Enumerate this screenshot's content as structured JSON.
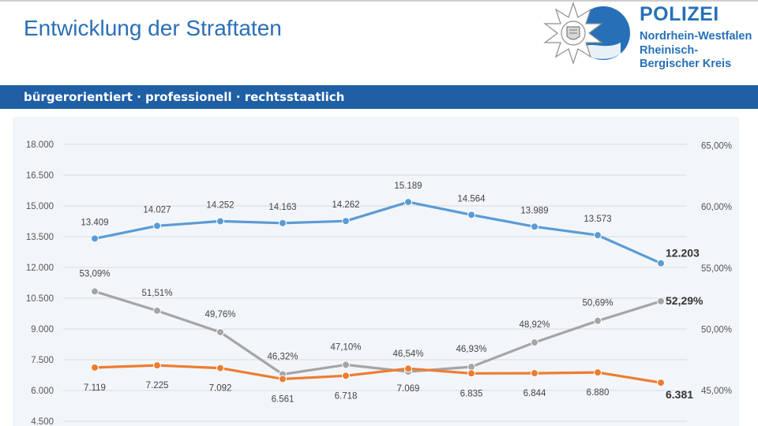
{
  "header": {
    "title": "Entwicklung der Straftaten",
    "tagline": "bürgerorientiert · professionell · rechtsstaatlich"
  },
  "logo": {
    "line1": "POLIZEI",
    "line2": "Nordrhein-Westfalen",
    "line3": "Rheinisch-",
    "line4": "Bergischer Kreis",
    "colors": {
      "brand_blue": "#2770b8",
      "star": "#9a9a9a"
    }
  },
  "colors": {
    "band": "#1f5fa5",
    "title": "#2a6fb7",
    "series_blue": "#5b9bd5",
    "series_gray": "#a5a5a5",
    "series_orange": "#ed7d31"
  },
  "chart_data": {
    "type": "line",
    "title": "",
    "xlabel": "",
    "ylabel": "",
    "ylim": [
      4500,
      18000
    ],
    "y_ticks": [
      "4.500",
      "6.000",
      "7.500",
      "9.000",
      "10.500",
      "12.000",
      "13.500",
      "15.000",
      "16.500",
      "18.000"
    ],
    "y_tick_values": [
      4500,
      6000,
      7500,
      9000,
      10500,
      12000,
      13500,
      15000,
      16500,
      18000
    ],
    "y2lim": [
      40,
      65
    ],
    "y2_ticks": [
      "45,00%",
      "50,00%",
      "55,00%",
      "60,00%",
      "65,00%"
    ],
    "y2_tick_values": [
      45,
      50,
      55,
      60,
      65
    ],
    "grid": true,
    "legend": "none",
    "x_count": 10,
    "series": [
      {
        "axis": "left",
        "color": "#5b9bd5",
        "values": [
          13409,
          14027,
          14252,
          14163,
          14262,
          15189,
          14564,
          13989,
          13573,
          12203
        ],
        "labels": [
          "13.409",
          "14.027",
          "14.252",
          "14.163",
          "14.262",
          "15.189",
          "14.564",
          "13.989",
          "13.573",
          "12.203"
        ]
      },
      {
        "axis": "right",
        "color": "#a5a5a5",
        "values": [
          53.09,
          51.51,
          49.76,
          46.32,
          47.1,
          46.54,
          46.93,
          48.92,
          50.69,
          52.29
        ],
        "labels": [
          "53,09%",
          "51,51%",
          "49,76%",
          "46,32%",
          "47,10%",
          "46,54%",
          "46,93%",
          "48,92%",
          "50,69%",
          "52,29%"
        ]
      },
      {
        "axis": "left",
        "color": "#ed7d31",
        "values": [
          7119,
          7225,
          7092,
          6561,
          6718,
          7069,
          6835,
          6844,
          6880,
          6381
        ],
        "labels": [
          "7.119",
          "7.225",
          "7.092",
          "6.561",
          "6.718",
          "7.069",
          "6.835",
          "6.844",
          "6.880",
          "6.381"
        ]
      }
    ]
  }
}
